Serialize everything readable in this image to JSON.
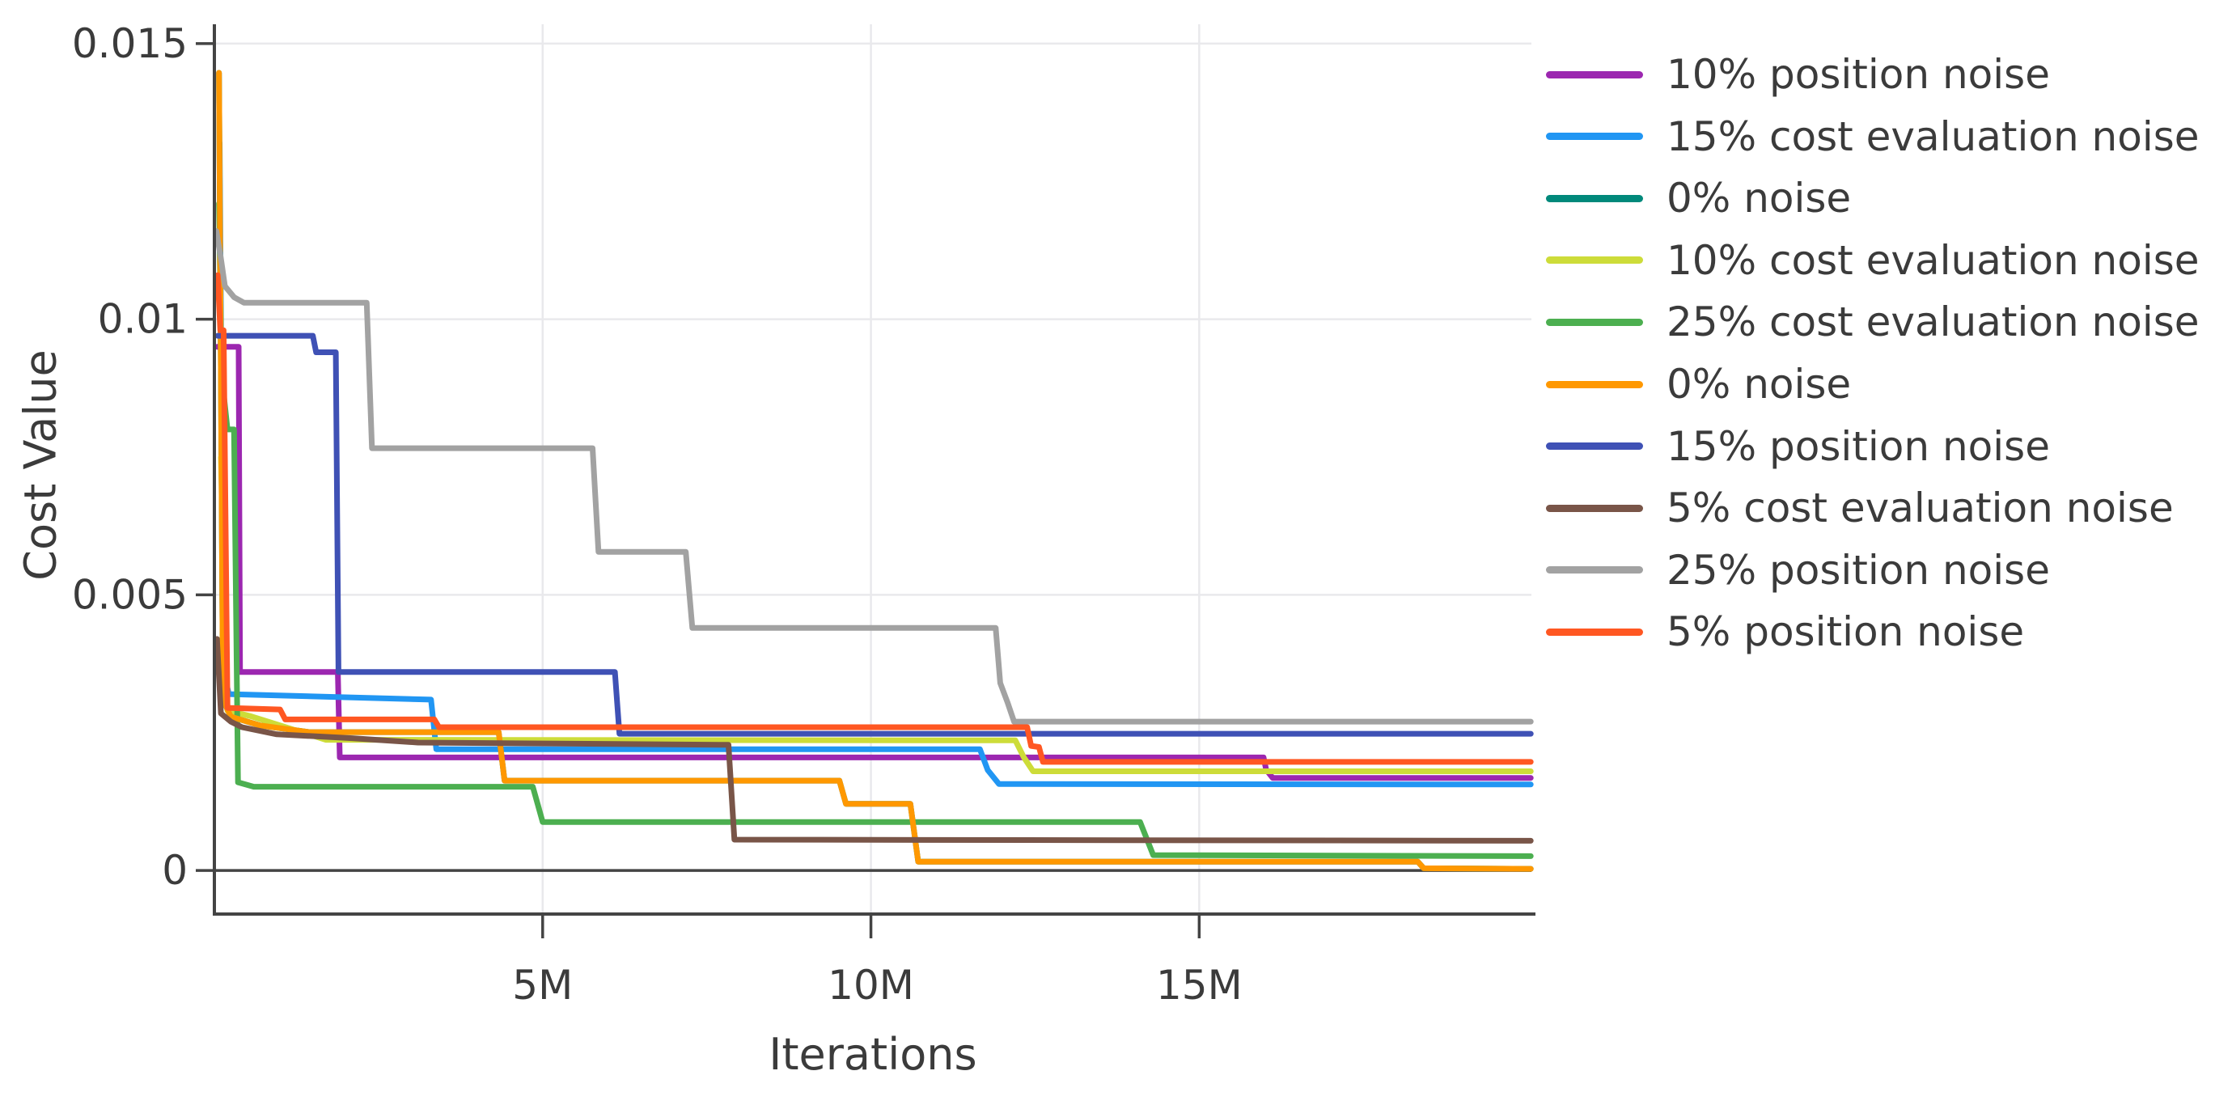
{
  "chart_data": {
    "type": "line",
    "title": "",
    "xlabel": "Iterations",
    "ylabel": "Cost Value",
    "x_unit": "millions of iterations",
    "xlim_millions": [
      0,
      20.06
    ],
    "ylim": [
      -0.00079,
      0.01535
    ],
    "grid": true,
    "legend_position": "right",
    "axis_color": "#444444",
    "grid_color": "#e9e9ec",
    "text_color": "#3b3b3b",
    "x_ticks": [
      {
        "value": 5,
        "label": "5M"
      },
      {
        "value": 10,
        "label": "10M"
      },
      {
        "value": 15,
        "label": "15M"
      }
    ],
    "y_ticks": [
      {
        "value": 0,
        "label": "0"
      },
      {
        "value": 0.005,
        "label": "0.005"
      },
      {
        "value": 0.01,
        "label": "0.01"
      },
      {
        "value": 0.015,
        "label": "0.015"
      }
    ],
    "series": [
      {
        "name": "10% position noise",
        "color": "#9c27b0",
        "points": [
          [
            0.04,
            0.0095
          ],
          [
            0.37,
            0.0095
          ],
          [
            0.39,
            0.0036
          ],
          [
            1.88,
            0.0036
          ],
          [
            1.91,
            0.00205
          ],
          [
            15.98,
            0.00205
          ],
          [
            16.02,
            0.00183
          ],
          [
            16.12,
            0.00168
          ],
          [
            20.05,
            0.00168
          ]
        ]
      },
      {
        "name": "15% cost evaluation noise",
        "color": "#2196f3",
        "points": [
          [
            0.08,
            0.0132
          ],
          [
            0.14,
            0.0036
          ],
          [
            0.22,
            0.0032
          ],
          [
            3.3,
            0.0031
          ],
          [
            3.38,
            0.0022
          ],
          [
            11.66,
            0.0022
          ],
          [
            11.78,
            0.00182
          ],
          [
            11.95,
            0.00157
          ],
          [
            20.05,
            0.00156
          ]
        ]
      },
      {
        "name": "0% noise",
        "color": "#00897b",
        "points": [
          [
            0.07,
            0.01447
          ],
          [
            0.13,
            0.0031
          ],
          [
            0.25,
            0.00279
          ],
          [
            0.7,
            0.00263
          ],
          [
            1.45,
            0.00251
          ],
          [
            4.33,
            0.00251
          ],
          [
            4.42,
            0.00163
          ],
          [
            9.52,
            0.00163
          ],
          [
            9.62,
            0.00121
          ],
          [
            10.6,
            0.00121
          ],
          [
            10.72,
            0.00016
          ],
          [
            18.33,
            0.00016
          ],
          [
            18.42,
            4e-05
          ],
          [
            20.05,
            3e-05
          ]
        ]
      },
      {
        "name": "10% cost evaluation noise",
        "color": "#cddc39",
        "points": [
          [
            0.1,
            0.0075
          ],
          [
            0.2,
            0.0029
          ],
          [
            0.55,
            0.0028
          ],
          [
            1.7,
            0.00237
          ],
          [
            12.2,
            0.00236
          ],
          [
            12.33,
            0.00205
          ],
          [
            12.47,
            0.0018
          ],
          [
            20.05,
            0.0018
          ]
        ]
      },
      {
        "name": "25% cost evaluation noise",
        "color": "#4caf50",
        "points": [
          [
            0.07,
            0.0121
          ],
          [
            0.11,
            0.009
          ],
          [
            0.2,
            0.008
          ],
          [
            0.3,
            0.008
          ],
          [
            0.36,
            0.0016
          ],
          [
            0.6,
            0.00152
          ],
          [
            4.85,
            0.00152
          ],
          [
            5.0,
            0.00088
          ],
          [
            14.1,
            0.00088
          ],
          [
            14.3,
            0.00028
          ],
          [
            20.05,
            0.00026
          ]
        ]
      },
      {
        "name": "0% noise",
        "color": "#ff9800",
        "points": [
          [
            0.07,
            0.01447
          ],
          [
            0.13,
            0.0031
          ],
          [
            0.25,
            0.00279
          ],
          [
            0.7,
            0.00263
          ],
          [
            1.45,
            0.00251
          ],
          [
            4.33,
            0.00251
          ],
          [
            4.42,
            0.00163
          ],
          [
            9.52,
            0.00163
          ],
          [
            9.62,
            0.00121
          ],
          [
            10.6,
            0.00121
          ],
          [
            10.72,
            0.00016
          ],
          [
            18.33,
            0.00016
          ],
          [
            18.42,
            4e-05
          ],
          [
            20.05,
            3e-05
          ]
        ]
      },
      {
        "name": "15% position noise",
        "color": "#3f51b5",
        "points": [
          [
            0.05,
            0.0097
          ],
          [
            1.5,
            0.0097
          ],
          [
            1.55,
            0.0094
          ],
          [
            1.85,
            0.0094
          ],
          [
            1.89,
            0.0036
          ],
          [
            6.1,
            0.0036
          ],
          [
            6.17,
            0.00248
          ],
          [
            20.05,
            0.00248
          ]
        ]
      },
      {
        "name": "5% cost evaluation noise",
        "color": "#795548",
        "points": [
          [
            0.04,
            0.0042
          ],
          [
            0.1,
            0.00285
          ],
          [
            0.25,
            0.0027
          ],
          [
            0.42,
            0.0026
          ],
          [
            0.95,
            0.00247
          ],
          [
            2.1,
            0.0024
          ],
          [
            3.1,
            0.00232
          ],
          [
            7.83,
            0.00228
          ],
          [
            7.92,
            0.00056
          ],
          [
            20.05,
            0.00054
          ]
        ]
      },
      {
        "name": "25% position noise",
        "color": "#a2a2a2",
        "points": [
          [
            0.03,
            0.0116
          ],
          [
            0.1,
            0.0111
          ],
          [
            0.16,
            0.0106
          ],
          [
            0.3,
            0.0104
          ],
          [
            0.45,
            0.0103
          ],
          [
            2.32,
            0.0103
          ],
          [
            2.4,
            0.00766
          ],
          [
            5.76,
            0.00766
          ],
          [
            5.85,
            0.00578
          ],
          [
            7.18,
            0.00578
          ],
          [
            7.28,
            0.0044
          ],
          [
            11.9,
            0.0044
          ],
          [
            11.97,
            0.0034
          ],
          [
            12.08,
            0.00305
          ],
          [
            12.18,
            0.0027
          ],
          [
            20.05,
            0.0027
          ]
        ]
      },
      {
        "name": "5% position noise",
        "color": "#ff5722",
        "points": [
          [
            0.05,
            0.0108
          ],
          [
            0.09,
            0.0098
          ],
          [
            0.14,
            0.0098
          ],
          [
            0.2,
            0.00295
          ],
          [
            1.0,
            0.00292
          ],
          [
            1.08,
            0.00274
          ],
          [
            3.35,
            0.00274
          ],
          [
            3.42,
            0.0026
          ],
          [
            12.38,
            0.0026
          ],
          [
            12.44,
            0.00226
          ],
          [
            12.56,
            0.00224
          ],
          [
            12.62,
            0.00197
          ],
          [
            20.05,
            0.00197
          ]
        ]
      }
    ]
  }
}
